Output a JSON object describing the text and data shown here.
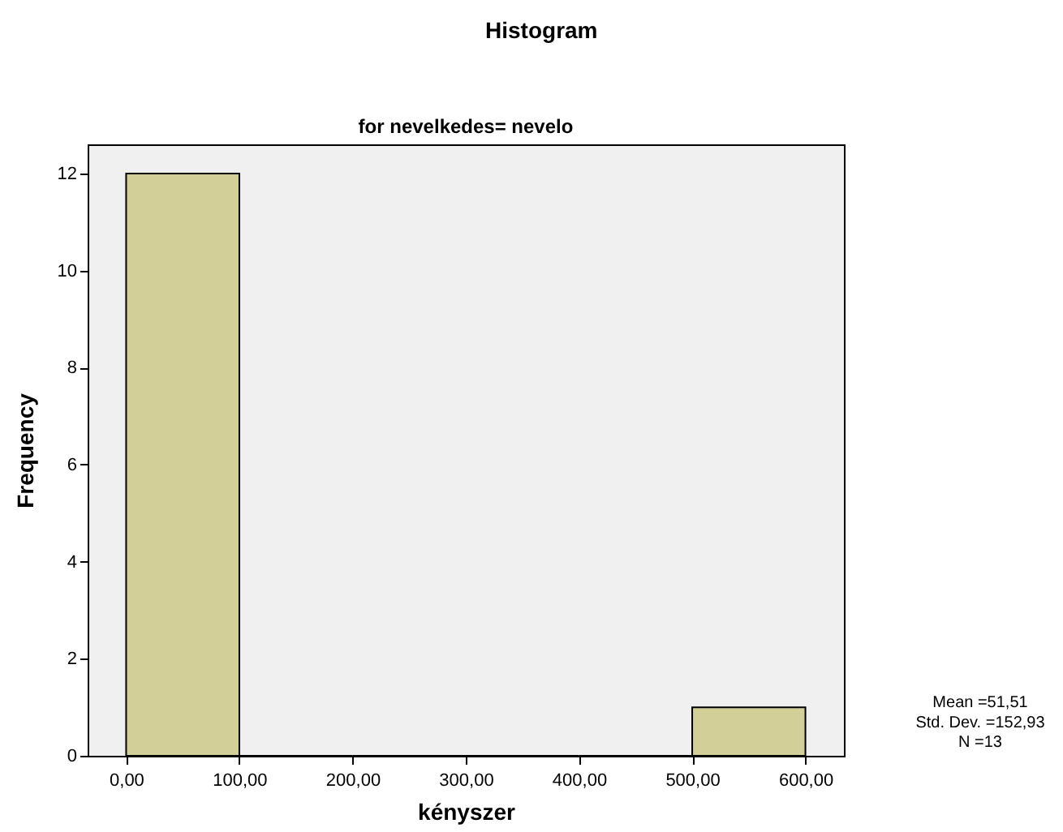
{
  "chart_data": {
    "type": "histogram",
    "title": "Histogram",
    "subtitle": "for nevelkedes= nevelo",
    "xlabel": "kényszer",
    "ylabel": "Frequency",
    "bins": [
      0,
      100,
      200,
      300,
      400,
      500,
      600
    ],
    "values": [
      12,
      0,
      0,
      0,
      0,
      1
    ],
    "color": "#d3cf99",
    "xlim": [
      -34,
      634
    ],
    "ylim": [
      0,
      12.6
    ],
    "xticks": [
      {
        "value": 0,
        "label": "0,00"
      },
      {
        "value": 100,
        "label": "100,00"
      },
      {
        "value": 200,
        "label": "200,00"
      },
      {
        "value": 300,
        "label": "300,00"
      },
      {
        "value": 400,
        "label": "400,00"
      },
      {
        "value": 500,
        "label": "500,00"
      },
      {
        "value": 600,
        "label": "600,00"
      }
    ],
    "yticks": [
      0,
      2,
      4,
      6,
      8,
      10,
      12
    ],
    "grid": false,
    "annotations": [
      "Mean =51,51",
      "Std. Dev. =152,93",
      "N =13"
    ]
  }
}
